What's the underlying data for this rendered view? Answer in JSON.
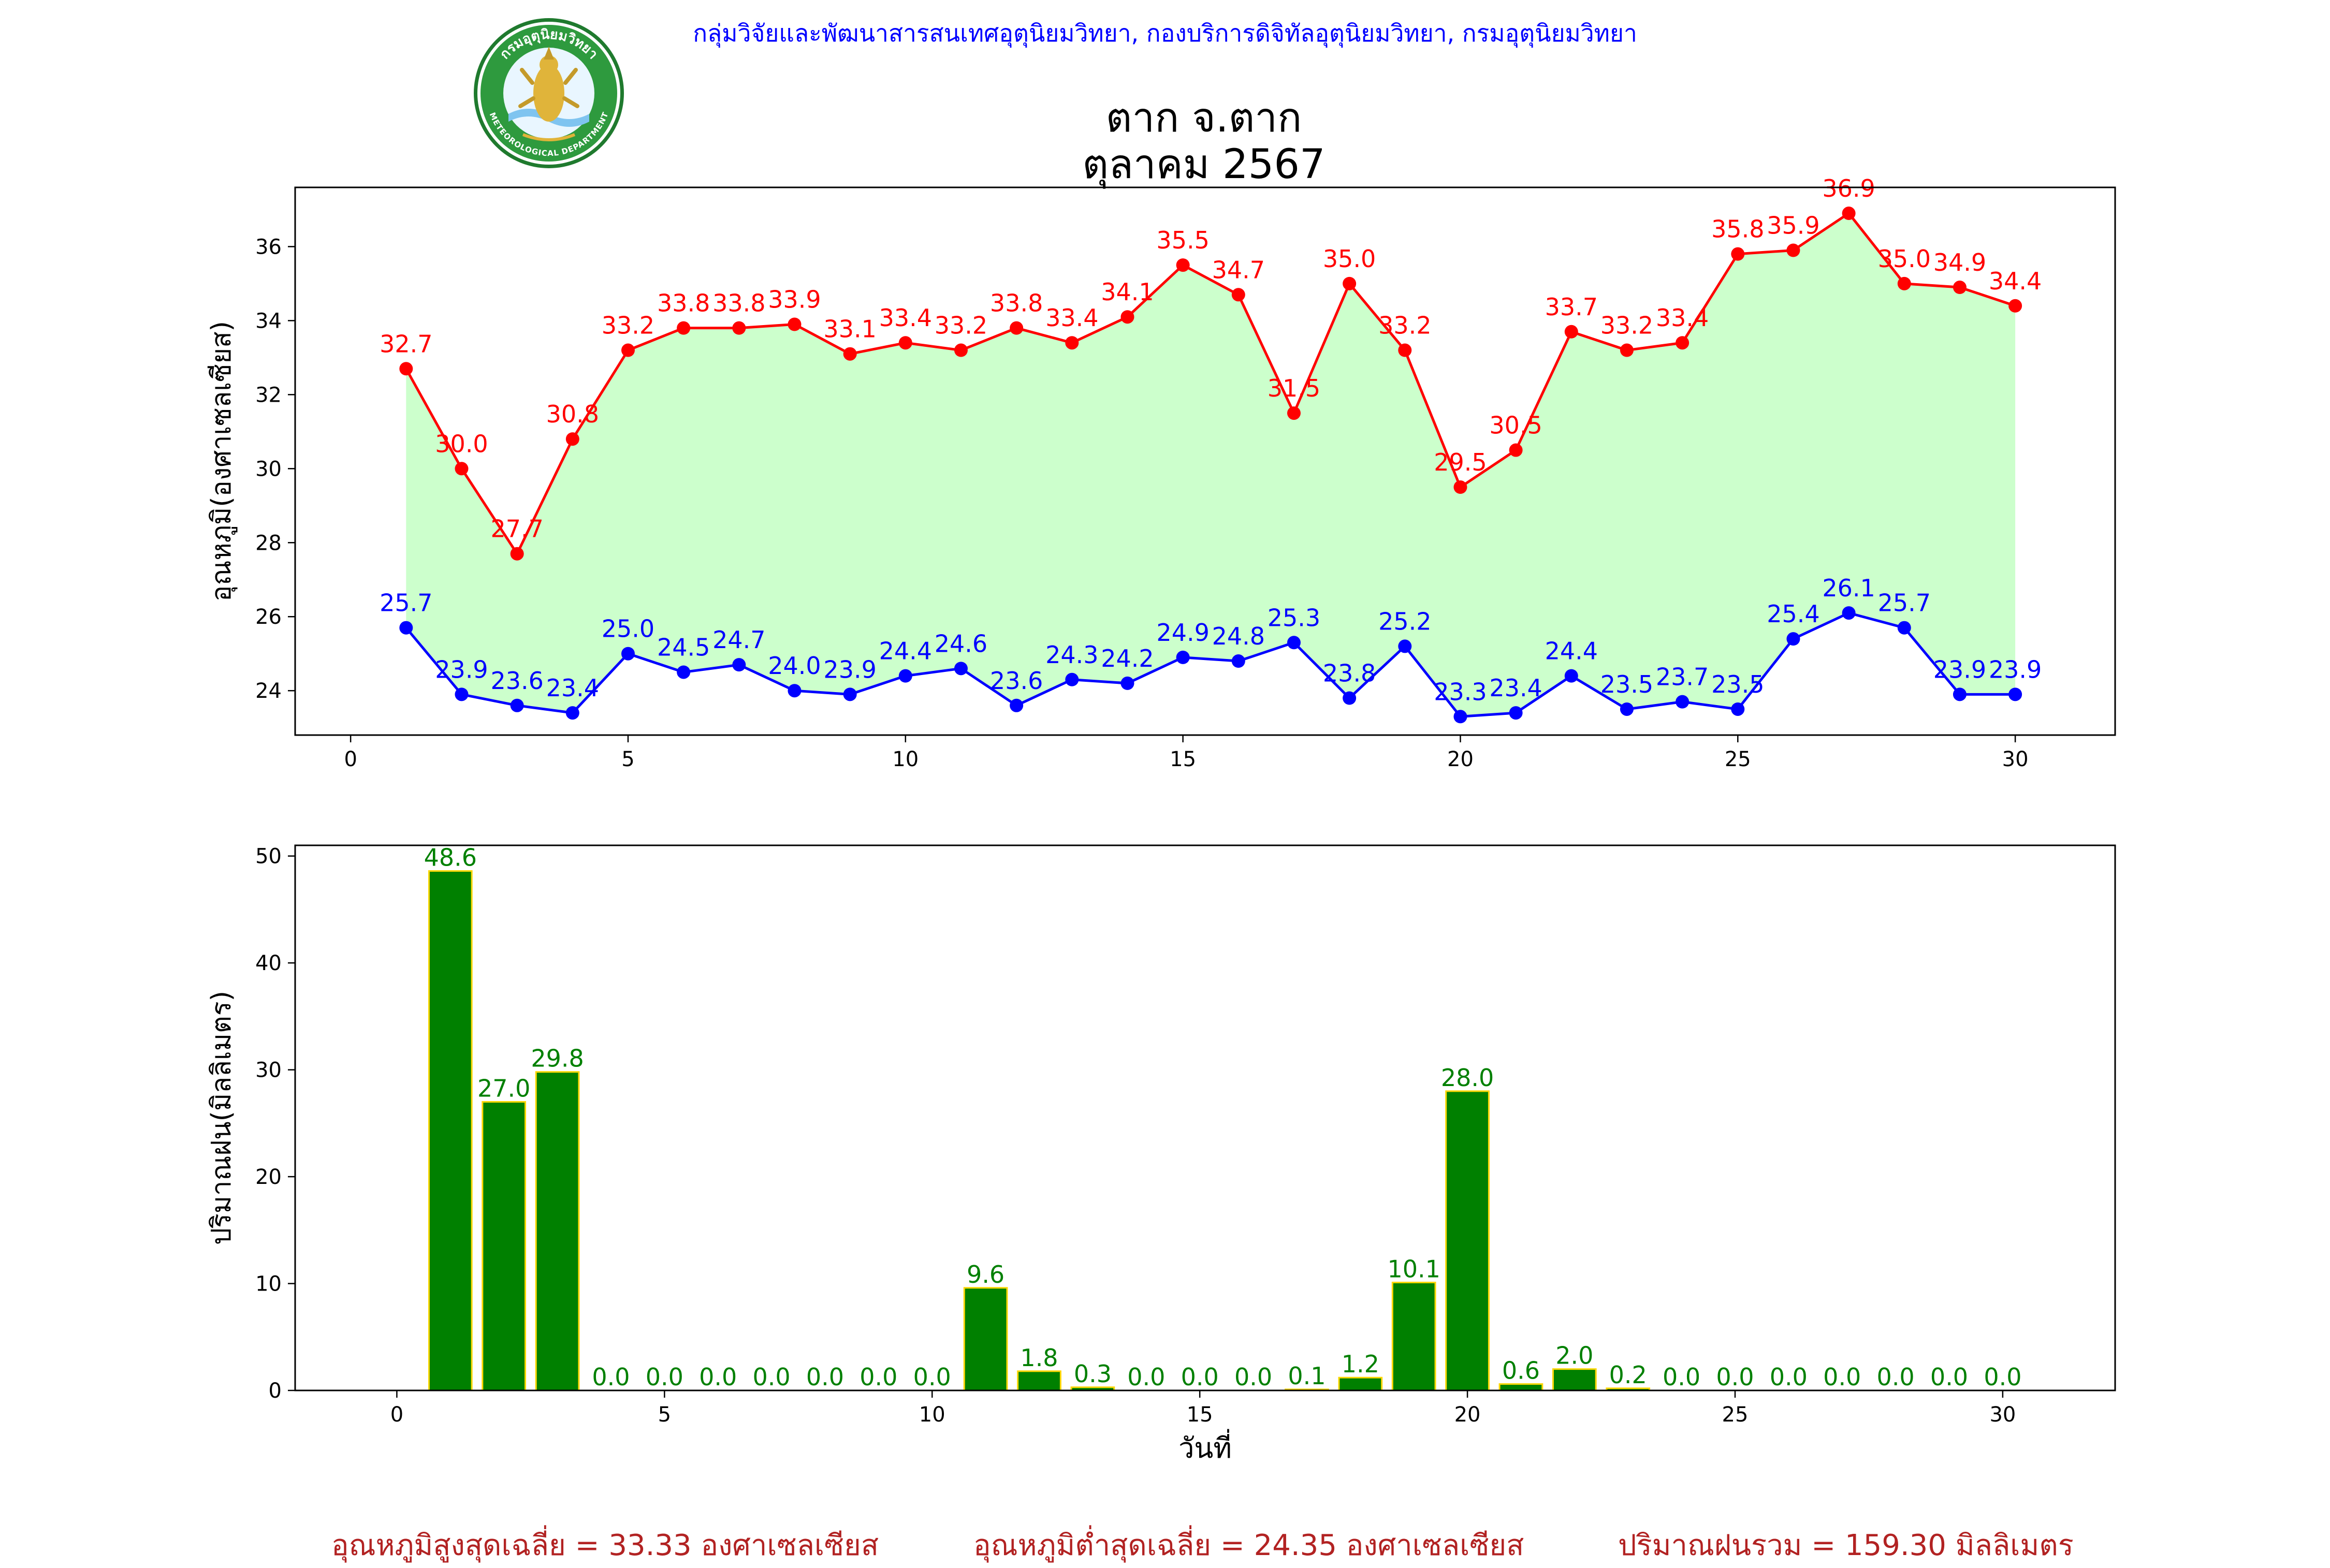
{
  "header": {
    "agency_line": "กลุ่มวิจัยและพัฒนาสารสนเทศอุตุนิยมวิทยา, กองบริการดิจิทัลอุตุนิยมวิทยา, กรมอุตุนิยมวิทยา",
    "logo_text_top": "กรมอุตุนิยมวิทยา",
    "logo_text_bottom": "METEOROLOGICAL DEPARTMENT"
  },
  "title": {
    "station": "ตาก จ.ตาก",
    "period": "ตุลาคม 2567"
  },
  "colors": {
    "tmax": "#ff0000",
    "tmin": "#0000ff",
    "range_fill": "#ccffcc",
    "rain_bar": "#008000",
    "rain_edge": "#ffd700",
    "rain_label": "#008000",
    "footer": "#b22222",
    "header": "#0000ff"
  },
  "chart_data": [
    {
      "type": "line",
      "ylabel": "อุณหภูมิ(องศาเซลเซียส)",
      "xlabel": "",
      "xlim": [
        -1,
        31.8
      ],
      "ylim": [
        22.8,
        37.6
      ],
      "xticks": [
        0,
        5,
        10,
        15,
        20,
        25,
        30
      ],
      "yticks": [
        24,
        26,
        28,
        30,
        32,
        34,
        36
      ],
      "x": [
        1,
        2,
        3,
        4,
        5,
        6,
        7,
        8,
        9,
        10,
        11,
        12,
        13,
        14,
        15,
        16,
        17,
        18,
        19,
        20,
        21,
        22,
        23,
        24,
        25,
        26,
        27,
        28,
        29,
        30
      ],
      "series": [
        {
          "key": "tmax",
          "values": [
            32.7,
            30.0,
            27.7,
            30.8,
            33.2,
            33.8,
            33.8,
            33.9,
            33.1,
            33.4,
            33.2,
            33.8,
            33.4,
            34.1,
            35.5,
            34.7,
            31.5,
            35.0,
            33.2,
            29.5,
            30.5,
            33.7,
            33.2,
            33.4,
            35.8,
            35.9,
            36.9,
            35.0,
            34.9,
            34.4
          ],
          "labels": [
            "32.7",
            "30.0",
            "27.7",
            "30.8",
            "33.2",
            "33.8",
            "33.8",
            "33.9",
            "33.1",
            "33.4",
            "33.2",
            "33.8",
            "33.4",
            "34.1",
            "35.5",
            "34.7",
            "31.5",
            "35.0",
            "33.2",
            "29.5",
            "30.5",
            "33.7",
            "33.2",
            "33.4",
            "35.8",
            "35.9",
            "36.9",
            "35.0",
            "34.9",
            "34.4"
          ]
        },
        {
          "key": "tmin",
          "values": [
            25.7,
            23.9,
            23.6,
            23.4,
            25.0,
            24.5,
            24.7,
            24.0,
            23.9,
            24.4,
            24.6,
            23.6,
            24.3,
            24.2,
            24.9,
            24.8,
            25.3,
            23.8,
            25.2,
            23.3,
            23.4,
            24.4,
            23.5,
            23.7,
            23.5,
            25.4,
            26.1,
            25.7,
            23.9,
            23.9
          ],
          "labels": [
            "25.7",
            "23.9",
            "23.6",
            "23.4",
            "25.0",
            "24.5",
            "24.7",
            "24.0",
            "23.9",
            "24.4",
            "24.6",
            "23.6",
            "24.3",
            "24.2",
            "24.9",
            "24.8",
            "25.3",
            "23.8",
            "25.2",
            "23.3",
            "23.4",
            "24.4",
            "23.5",
            "23.7",
            "23.5",
            "25.4",
            "26.1",
            "25.7",
            "23.9",
            "23.9"
          ]
        }
      ],
      "grid": false
    },
    {
      "type": "bar",
      "ylabel": "ปริมาณฝน(มิลลิเมตร)",
      "xlabel": "วันที่",
      "xlim": [
        -1.9,
        32.1
      ],
      "ylim": [
        0,
        51
      ],
      "xticks": [
        0,
        5,
        10,
        15,
        20,
        25,
        30
      ],
      "yticks": [
        0,
        10,
        20,
        30,
        40,
        50
      ],
      "x": [
        1,
        2,
        3,
        4,
        5,
        6,
        7,
        8,
        9,
        10,
        11,
        12,
        13,
        14,
        15,
        16,
        17,
        18,
        19,
        20,
        21,
        22,
        23,
        24,
        25,
        26,
        27,
        28,
        29,
        30
      ],
      "values": [
        48.6,
        27.0,
        29.8,
        0.0,
        0.0,
        0.0,
        0.0,
        0.0,
        0.0,
        0.0,
        9.6,
        1.8,
        0.3,
        0.0,
        0.0,
        0.0,
        0.1,
        1.2,
        10.1,
        28.0,
        0.6,
        2.0,
        0.2,
        0.0,
        0.0,
        0.0,
        0.0,
        0.0,
        0.0,
        0.0
      ],
      "labels": [
        "48.6",
        "27.0",
        "29.8",
        "0.0",
        "0.0",
        "0.0",
        "0.0",
        "0.0",
        "0.0",
        "0.0",
        "9.6",
        "1.8",
        "0.3",
        "0.0",
        "0.0",
        "0.0",
        "0.1",
        "1.2",
        "10.1",
        "28.0",
        "0.6",
        "2.0",
        "0.2",
        "0.0",
        "0.0",
        "0.0",
        "0.0",
        "0.0",
        "0.0",
        "0.0"
      ],
      "grid": false
    }
  ],
  "footer": {
    "avg_max": "อุณหภูมิสูงสุดเฉลี่ย = 33.33 องศาเซลเซียส",
    "avg_min": "อุณหภูมิต่ำสุดเฉลี่ย = 24.35 องศาเซลเซียส",
    "total_rain": "ปริมาณฝนรวม = 159.30 มิลลิเมตร"
  }
}
